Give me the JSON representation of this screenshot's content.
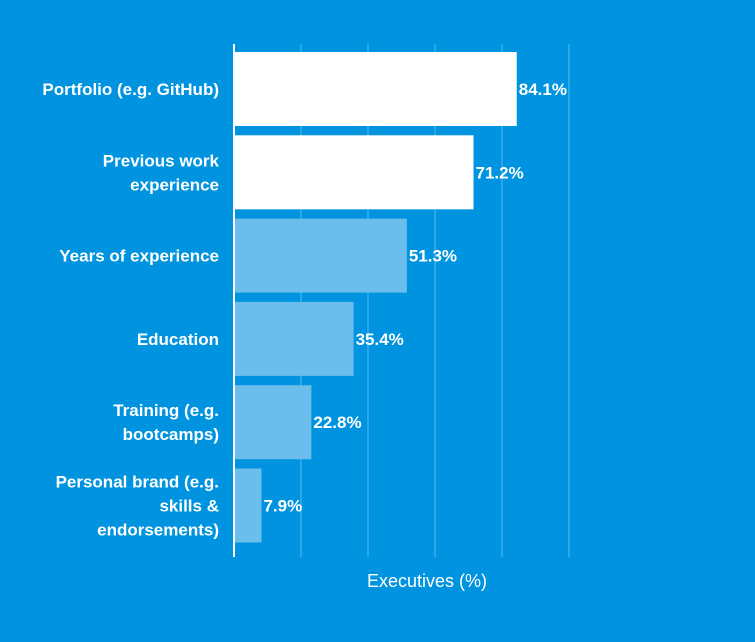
{
  "chart_data": {
    "type": "bar",
    "orientation": "horizontal",
    "categories": [
      [
        "Portfolio (e.g. GitHub)"
      ],
      [
        "Previous work",
        "experience"
      ],
      [
        "Years of experience"
      ],
      [
        "Education"
      ],
      [
        "Training (e.g.",
        "bootcamps)"
      ],
      [
        "Personal brand (e.g.",
        "skills &",
        "endorsements)"
      ]
    ],
    "values": [
      84.1,
      71.2,
      51.3,
      35.4,
      22.8,
      7.9
    ],
    "value_labels": [
      "84.1%",
      "71.2%",
      "51.3%",
      "35.4%",
      "22.8%",
      "7.9%"
    ],
    "bar_colors": [
      "#FFFFFF",
      "#FFFFFF",
      "#6BBDEC",
      "#6BBDEC",
      "#6BBDEC",
      "#6BBDEC"
    ],
    "xlabel": "Executives (%)",
    "ylabel": "",
    "xlim": [
      0,
      100
    ],
    "grid": true,
    "background": "#0094E0"
  }
}
